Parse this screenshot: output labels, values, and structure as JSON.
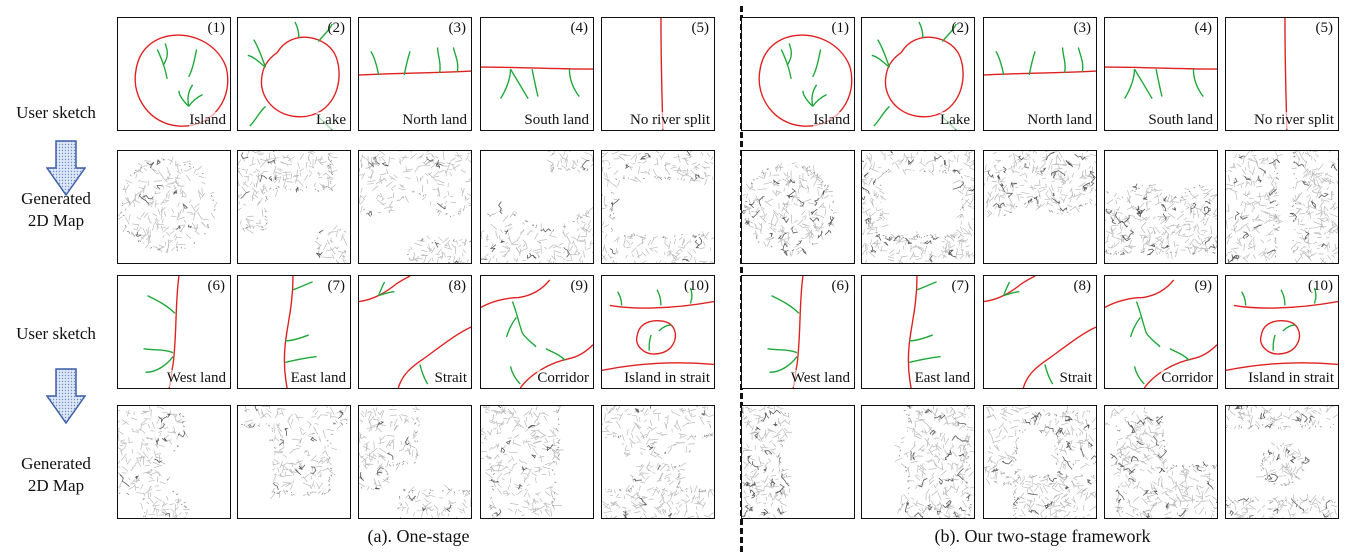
{
  "row_labels": {
    "sketch": "User sketch",
    "generated_line1": "Generated",
    "generated_line2": "2D Map"
  },
  "sketches": [
    {
      "num": "(1)",
      "label": "Island"
    },
    {
      "num": "(2)",
      "label": "Lake"
    },
    {
      "num": "(3)",
      "label": "North land"
    },
    {
      "num": "(4)",
      "label": "South land"
    },
    {
      "num": "(5)",
      "label": "No river split"
    },
    {
      "num": "(6)",
      "label": "West land"
    },
    {
      "num": "(7)",
      "label": "East land"
    },
    {
      "num": "(8)",
      "label": "Strait"
    },
    {
      "num": "(9)",
      "label": "Corridor"
    },
    {
      "num": "(10)",
      "label": "Island in strait"
    }
  ],
  "captions": {
    "left": "(a). One-stage",
    "right": "(b). Our two-stage framework"
  },
  "colors": {
    "coast": "#e02020",
    "river": "#1fa83a",
    "terrain": "#b9b9b9",
    "terrain_river": "#3c3c3c",
    "arrow_fill": "#c9d8f2",
    "arrow_stroke": "#3d5fa8"
  }
}
